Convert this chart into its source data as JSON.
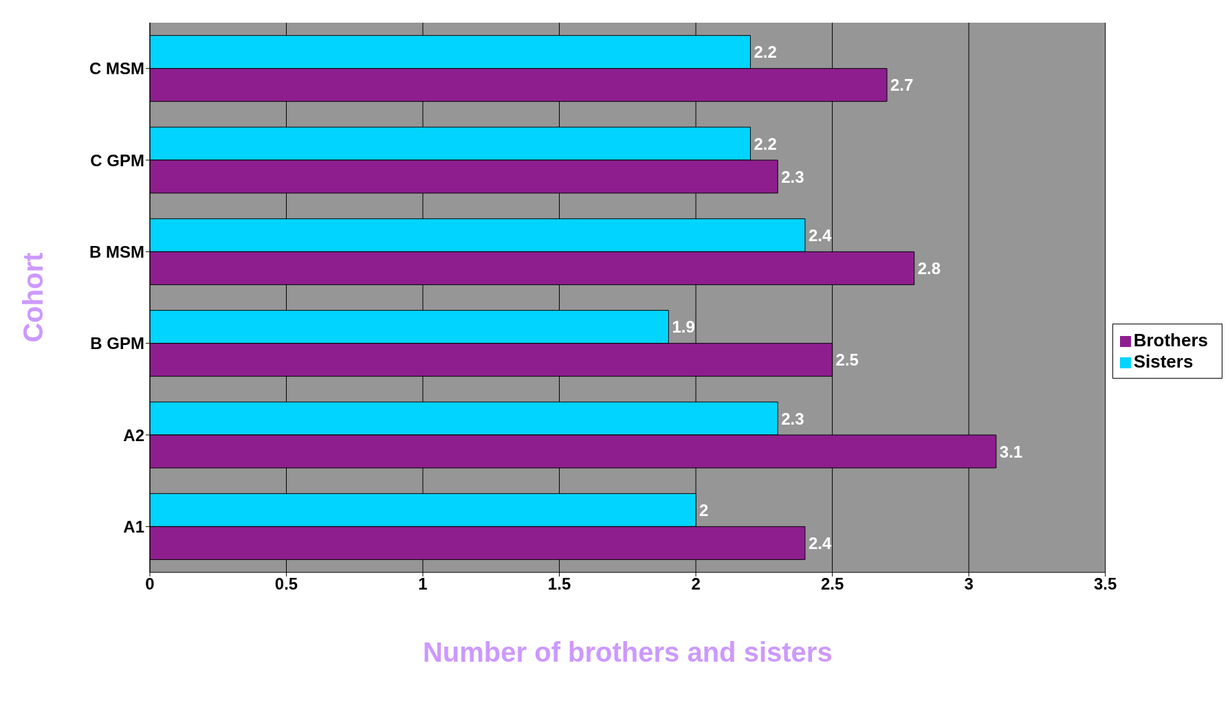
{
  "chart_data": {
    "type": "bar",
    "orientation": "horizontal",
    "xlabel": "Number of brothers and sisters",
    "ylabel": "Cohort",
    "categories": [
      "C MSM",
      "C GPM",
      "B MSM",
      "B GPM",
      "A2",
      "A1"
    ],
    "series": [
      {
        "name": "Sisters",
        "color": "#00d4ff",
        "values": [
          2.2,
          2.2,
          2.4,
          1.9,
          2.3,
          2
        ]
      },
      {
        "name": "Brothers",
        "color": "#8e1e8e",
        "values": [
          2.7,
          2.3,
          2.8,
          2.5,
          3.1,
          2.4
        ]
      }
    ],
    "xlim": [
      0,
      3.5
    ],
    "xticks": [
      0,
      0.5,
      1,
      1.5,
      2,
      2.5,
      3,
      3.5
    ],
    "grid": "x",
    "legend": "right",
    "data_labels": true
  }
}
